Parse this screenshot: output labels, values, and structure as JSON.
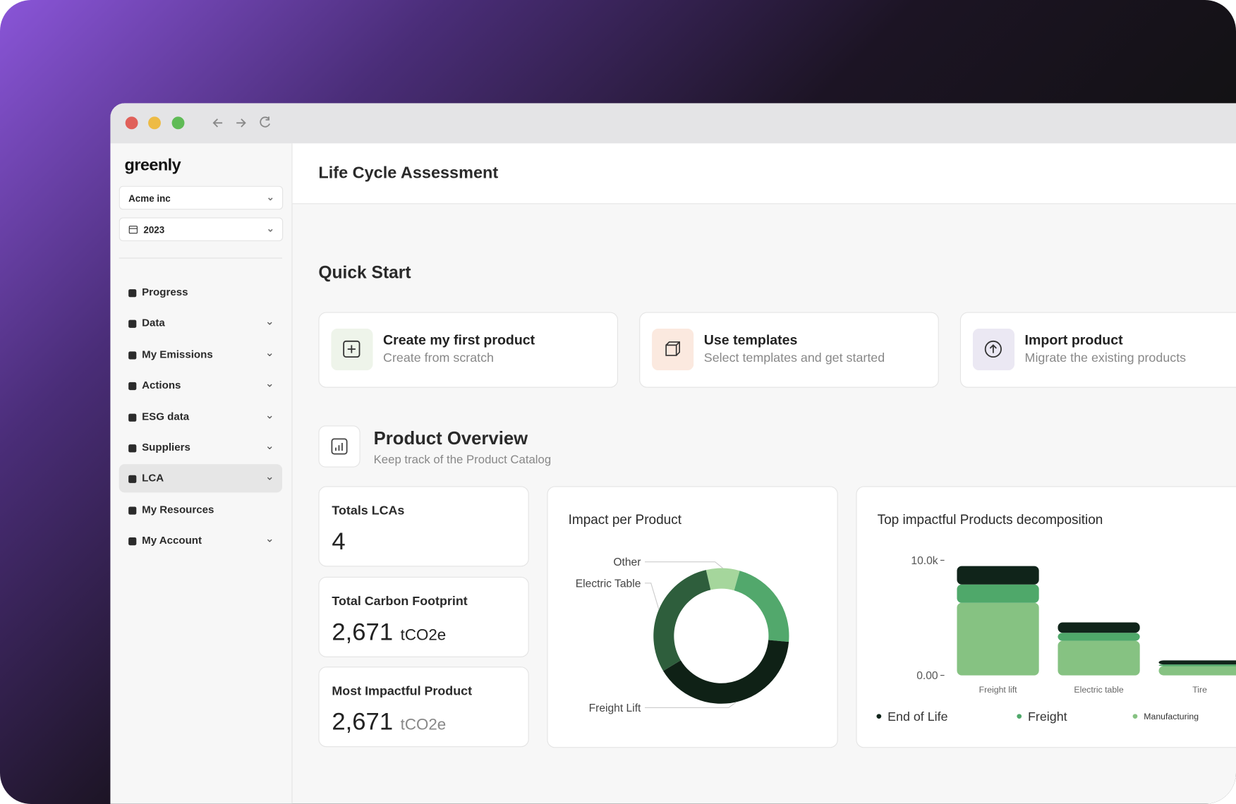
{
  "sidebar": {
    "logo": "greenly",
    "company": "Acme inc",
    "year": "2023",
    "nav": [
      "Progress",
      "Data",
      "My Emissions",
      "Actions",
      "ESG data",
      "Suppliers",
      "LCA",
      "My Resources",
      "My Account"
    ]
  },
  "header": {
    "title": "Life Cycle Assessment"
  },
  "quick_start": {
    "title": "Quick Start",
    "cards": [
      {
        "title": "Create my first product",
        "subtitle": "Create from scratch"
      },
      {
        "title": "Use templates",
        "subtitle": "Select templates and get started"
      },
      {
        "title": "Import product",
        "subtitle": "Migrate the existing products"
      }
    ]
  },
  "overview": {
    "title": "Product Overview",
    "subtitle": "Keep track of the Product Catalog",
    "stats": [
      {
        "label": "Totals LCAs",
        "value": "4"
      },
      {
        "label": "Total Carbon Footprint",
        "value": "2,671",
        "unit": "tCO2e"
      },
      {
        "label": "Most Impactful Product",
        "value": "2,671",
        "unit": "tCO2e"
      }
    ]
  },
  "chart_data": [
    {
      "type": "donut",
      "title": "Impact per Product",
      "categories": [
        "Other",
        null,
        "Freight Lift",
        "Electric Table"
      ],
      "values": [
        8,
        22,
        40,
        30
      ],
      "colors": [
        "#a5d69c",
        "#52a86c",
        "#0f2116",
        "#2e5e3c"
      ]
    },
    {
      "type": "bar",
      "title": "Top impactful Products decomposition",
      "categories": [
        "Freight lift",
        "Electric table",
        "Tire"
      ],
      "series": [
        {
          "name": "End of Life",
          "color": "#10241a",
          "values": [
            1600,
            900,
            350
          ]
        },
        {
          "name": "Freight",
          "color": "#4fa86a",
          "values": [
            1600,
            700,
            150
          ]
        },
        {
          "name": "Manufacturing",
          "color": "#86c282",
          "values": [
            6300,
            3000,
            800
          ]
        }
      ],
      "ylim": [
        0,
        10000
      ],
      "yticks": [
        {
          "value": 0,
          "label": "0.00"
        },
        {
          "value": 10000,
          "label": "10.0k"
        }
      ]
    }
  ]
}
